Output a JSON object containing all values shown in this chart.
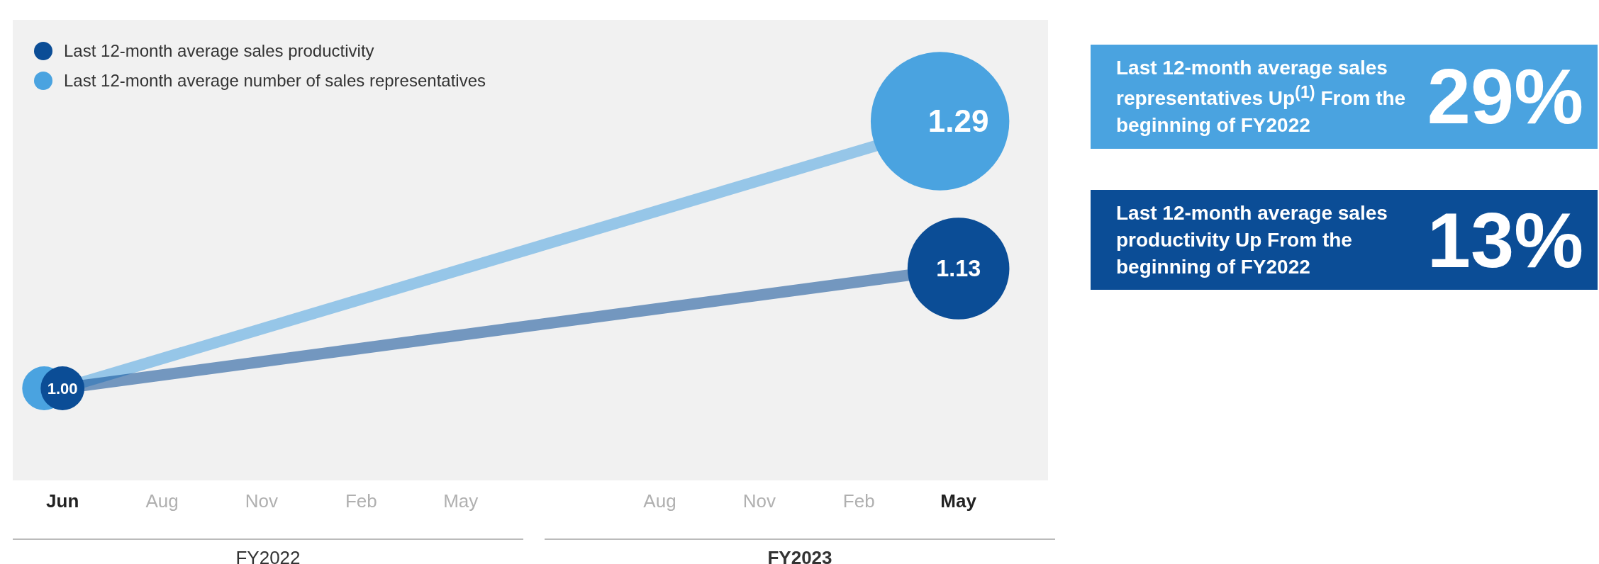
{
  "chart_data": {
    "type": "bubble",
    "categories": [
      "Jun",
      "Aug",
      "Nov",
      "Feb",
      "May",
      null,
      "Aug",
      "Nov",
      "Feb",
      "May"
    ],
    "series": [
      {
        "name": "Last 12-month average sales productivity",
        "color": "#0b4d96",
        "values": [
          1.0,
          null,
          null,
          null,
          null,
          null,
          null,
          null,
          null,
          1.13
        ],
        "sizes": [
          0.1,
          null,
          null,
          null,
          null,
          null,
          null,
          null,
          null,
          0.54
        ],
        "value_labels": [
          "1.00",
          null,
          null,
          null,
          null,
          null,
          null,
          null,
          null,
          "1.13"
        ]
      },
      {
        "name": "Last 12-month average number of sales representatives",
        "color": "#4aa3e0",
        "values": [
          1.0,
          null,
          null,
          null,
          null,
          null,
          null,
          null,
          null,
          1.29
        ],
        "sizes": [
          0.1,
          null,
          null,
          null,
          null,
          null,
          null,
          null,
          null,
          1
        ],
        "value_labels": [
          null,
          null,
          null,
          null,
          null,
          null,
          null,
          null,
          null,
          "1.29"
        ]
      }
    ],
    "ylim": [
      0.9,
      1.4
    ],
    "tick_labels": "x",
    "grid": false,
    "legend": "top left",
    "annotations": [
      "FY2022",
      "FY2023",
      "Last 12-month average sales representatives Up$^{(1)}$ From the beginning of FY2022",
      "29%",
      "Last 12-month average sales productivity Up From the beginning of FY2022",
      "13%"
    ]
  }
}
